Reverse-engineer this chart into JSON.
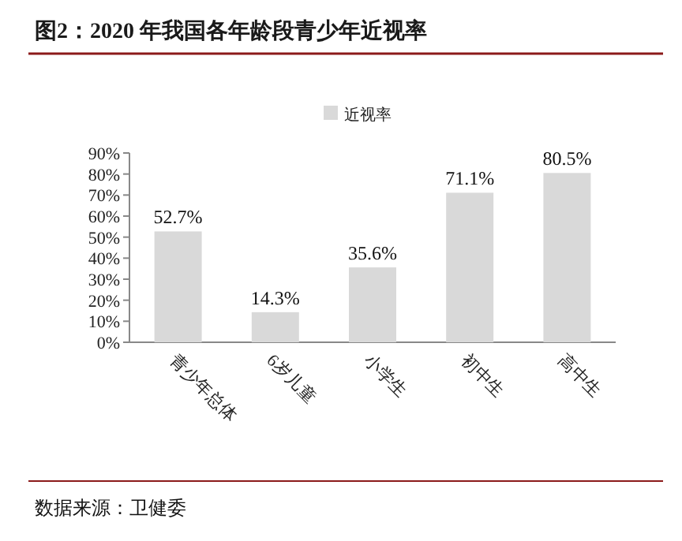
{
  "chart_data": {
    "type": "bar",
    "title": "图2：2020 年我国各年龄段青少年近视率",
    "categories": [
      "青少年总体",
      "6岁儿童",
      "小学生",
      "初中生",
      "高中生"
    ],
    "series": [
      {
        "name": "近视率",
        "color": "#d9d9d9",
        "values": [
          52.7,
          14.3,
          35.6,
          71.1,
          80.5
        ],
        "value_labels": [
          "52.7%",
          "14.3%",
          "35.6%",
          "71.1%",
          "80.5%"
        ]
      }
    ],
    "ylim": [
      0,
      90
    ],
    "yticks": [
      {
        "value": 0,
        "label": "0%"
      },
      {
        "value": 10,
        "label": "10%"
      },
      {
        "value": 20,
        "label": "20%"
      },
      {
        "value": 30,
        "label": "30%"
      },
      {
        "value": 40,
        "label": "40%"
      },
      {
        "value": 50,
        "label": "50%"
      },
      {
        "value": 60,
        "label": "60%"
      },
      {
        "value": 70,
        "label": "70%"
      },
      {
        "value": 80,
        "label": "80%"
      },
      {
        "value": 90,
        "label": "90%"
      }
    ],
    "legend": "top",
    "annotations": [
      "数据来源：卫健委"
    ]
  }
}
